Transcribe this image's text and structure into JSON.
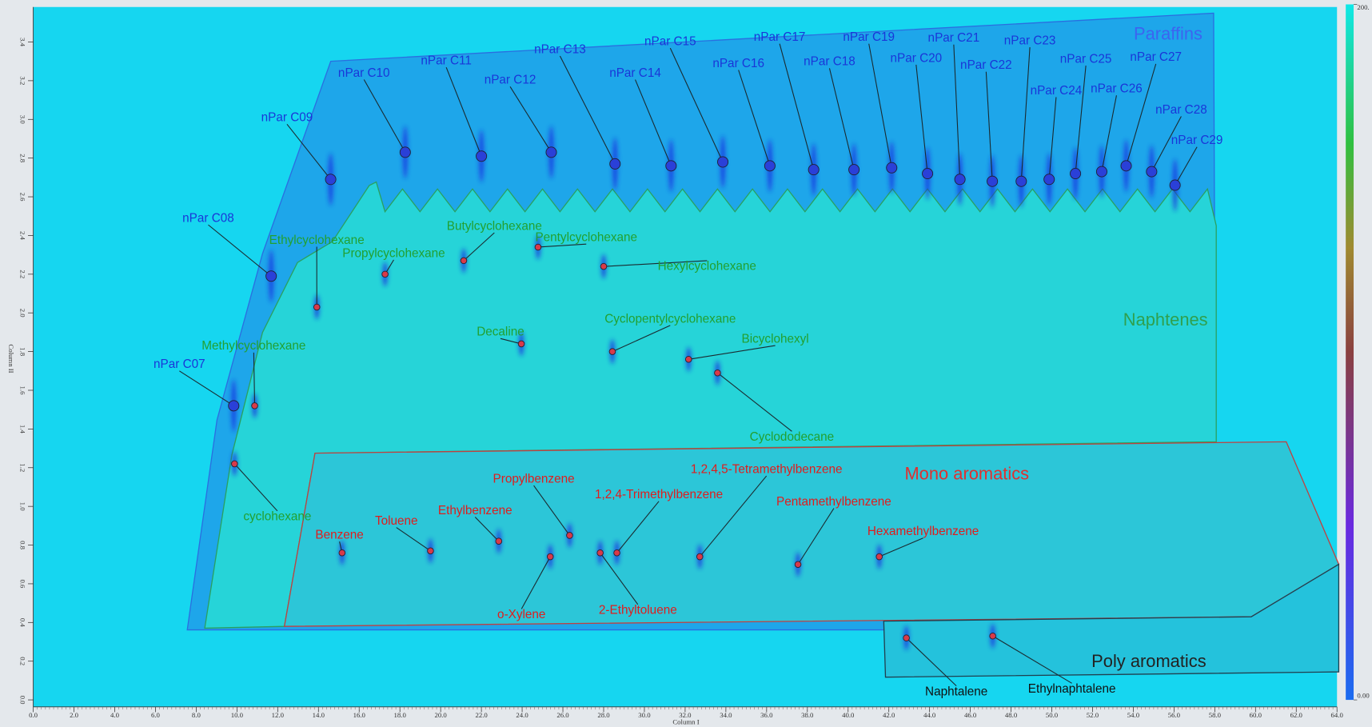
{
  "chart_data": {
    "type": "scatter",
    "xlabel": "Column I",
    "ylabel": "Column II",
    "xlim": [
      0,
      64
    ],
    "ylim": [
      0,
      3.4
    ],
    "xticks": [
      {
        "value": 0,
        "label": "0.0"
      },
      {
        "value": 2,
        "label": "2.0"
      },
      {
        "value": 4,
        "label": "4.0"
      },
      {
        "value": 6,
        "label": "6.0"
      },
      {
        "value": 8,
        "label": "8.0"
      },
      {
        "value": 10,
        "label": "10.0"
      },
      {
        "value": 12,
        "label": "12.0"
      },
      {
        "value": 14,
        "label": "14.0"
      },
      {
        "value": 16,
        "label": "16.0"
      },
      {
        "value": 18,
        "label": "18.0"
      },
      {
        "value": 20,
        "label": "20.0"
      },
      {
        "value": 22,
        "label": "22.0"
      },
      {
        "value": 24,
        "label": "24.0"
      },
      {
        "value": 26,
        "label": "26.0"
      },
      {
        "value": 28,
        "label": "28.0"
      },
      {
        "value": 30,
        "label": "30.0"
      },
      {
        "value": 32,
        "label": "32.0"
      },
      {
        "value": 34,
        "label": "34.0"
      },
      {
        "value": 36,
        "label": "36.0"
      },
      {
        "value": 38,
        "label": "38.0"
      },
      {
        "value": 40,
        "label": "40.0"
      },
      {
        "value": 42,
        "label": "42.0"
      },
      {
        "value": 44,
        "label": "44.0"
      },
      {
        "value": 46,
        "label": "46.0"
      },
      {
        "value": 48,
        "label": "48.0"
      },
      {
        "value": 50,
        "label": "50.0"
      },
      {
        "value": 52,
        "label": "52.0"
      },
      {
        "value": 54,
        "label": "54.0"
      },
      {
        "value": 56,
        "label": "56.0"
      },
      {
        "value": 58,
        "label": "58.0"
      },
      {
        "value": 60,
        "label": "60.0"
      },
      {
        "value": 62,
        "label": "62.0"
      },
      {
        "value": 64,
        "label": "64.0"
      }
    ],
    "yticks": [
      {
        "value": 0,
        "label": "0.0"
      },
      {
        "value": 0.2,
        "label": "0.2"
      },
      {
        "value": 0.4,
        "label": "0.4"
      },
      {
        "value": 0.6,
        "label": "0.6"
      },
      {
        "value": 0.8,
        "label": "0.8"
      },
      {
        "value": 1,
        "label": "1.0"
      },
      {
        "value": 1.2,
        "label": "1.2"
      },
      {
        "value": 1.4,
        "label": "1.4"
      },
      {
        "value": 1.6,
        "label": "1.6"
      },
      {
        "value": 1.8,
        "label": "1.8"
      },
      {
        "value": 2,
        "label": "2.0"
      },
      {
        "value": 2.2,
        "label": "2.2"
      },
      {
        "value": 2.4,
        "label": "2.4"
      },
      {
        "value": 2.6,
        "label": "2.6"
      },
      {
        "value": 2.8,
        "label": "2.8"
      },
      {
        "value": 3,
        "label": "3.0"
      },
      {
        "value": 3.2,
        "label": "3.2"
      },
      {
        "value": 3.4,
        "label": "3.4"
      }
    ],
    "colorbar": {
      "lim": [
        0,
        200
      ],
      "ticks": [
        {
          "value": 0,
          "label": "0.00"
        },
        {
          "value": 200,
          "label": "200."
        }
      ]
    },
    "groups": [
      {
        "name": "Paraffins",
        "color": "#3c64f0",
        "label_color": "#1a36d8",
        "compounds": [
          {
            "name": "nPar C07",
            "x": 9.84,
            "y": 1.52
          },
          {
            "name": "nPar C08",
            "x": 11.68,
            "y": 2.19
          },
          {
            "name": "nPar C09",
            "x": 14.6,
            "y": 2.69
          },
          {
            "name": "nPar C10",
            "x": 18.26,
            "y": 2.83
          },
          {
            "name": "nPar C11",
            "x": 22.0,
            "y": 2.81
          },
          {
            "name": "nPar C12",
            "x": 25.43,
            "y": 2.83
          },
          {
            "name": "nPar C13",
            "x": 28.56,
            "y": 2.77
          },
          {
            "name": "nPar C14",
            "x": 31.31,
            "y": 2.76
          },
          {
            "name": "nPar C15",
            "x": 33.85,
            "y": 2.78
          },
          {
            "name": "nPar C16",
            "x": 36.16,
            "y": 2.76
          },
          {
            "name": "nPar C17",
            "x": 38.31,
            "y": 2.74
          },
          {
            "name": "nPar C18",
            "x": 40.29,
            "y": 2.74
          },
          {
            "name": "nPar C19",
            "x": 42.14,
            "y": 2.75
          },
          {
            "name": "nPar C20",
            "x": 43.9,
            "y": 2.72
          },
          {
            "name": "nPar C21",
            "x": 45.49,
            "y": 2.69
          },
          {
            "name": "nPar C22",
            "x": 47.08,
            "y": 2.68
          },
          {
            "name": "nPar C23",
            "x": 48.5,
            "y": 2.68
          },
          {
            "name": "nPar C24",
            "x": 49.87,
            "y": 2.69
          },
          {
            "name": "nPar C25",
            "x": 51.16,
            "y": 2.72
          },
          {
            "name": "nPar C26",
            "x": 52.45,
            "y": 2.73
          },
          {
            "name": "nPar C27",
            "x": 53.65,
            "y": 2.76
          },
          {
            "name": "nPar C28",
            "x": 54.9,
            "y": 2.73
          },
          {
            "name": "nPar C29",
            "x": 56.05,
            "y": 2.66
          }
        ]
      },
      {
        "name": "Naphtenes",
        "color": "#2fa04e",
        "label_color": "#22a030",
        "compounds": [
          {
            "name": "Ethylcyclohexane",
            "x": 13.92,
            "y": 2.03
          },
          {
            "name": "Propylcyclohexane",
            "x": 17.27,
            "y": 2.2
          },
          {
            "name": "Butylcyclohexane",
            "x": 21.13,
            "y": 2.27
          },
          {
            "name": "Pentylcyclohexane",
            "x": 24.78,
            "y": 2.34
          },
          {
            "name": "Hexylcyclohexane",
            "x": 28.0,
            "y": 2.24
          },
          {
            "name": "Methylcyclohexane",
            "x": 10.87,
            "y": 1.52
          },
          {
            "name": "Decaline",
            "x": 23.96,
            "y": 1.84
          },
          {
            "name": "Cyclopentylcyclohexane",
            "x": 28.43,
            "y": 1.8
          },
          {
            "name": "Bicyclohexyl",
            "x": 32.17,
            "y": 1.76
          },
          {
            "name": "Cyclododecane",
            "x": 33.59,
            "y": 1.69
          },
          {
            "name": "cyclohexane",
            "x": 9.88,
            "y": 1.22
          }
        ]
      },
      {
        "name": "Mono aromatics",
        "color": "#e03030",
        "label_color": "#e01c1c",
        "compounds": [
          {
            "name": "Benzene",
            "x": 15.16,
            "y": 0.76
          },
          {
            "name": "Toluene",
            "x": 19.5,
            "y": 0.77
          },
          {
            "name": "Ethylbenzene",
            "x": 22.85,
            "y": 0.82
          },
          {
            "name": "Propylbenzene",
            "x": 26.33,
            "y": 0.85
          },
          {
            "name": "o-Xylene",
            "x": 25.38,
            "y": 0.74
          },
          {
            "name": "1,2,4-Trimethylbenzene",
            "x": 28.65,
            "y": 0.76
          },
          {
            "name": "2-Ethyltoluene",
            "x": 27.83,
            "y": 0.76
          },
          {
            "name": "1,2,4,5-Tetramethylbenzene",
            "x": 32.72,
            "y": 0.74
          },
          {
            "name": "Pentamethylbenzene",
            "x": 37.54,
            "y": 0.7
          },
          {
            "name": "Hexamethylbenzene",
            "x": 41.53,
            "y": 0.74
          }
        ]
      },
      {
        "name": "Poly aromatics",
        "color": "#222222",
        "label_color": "#111111",
        "compounds": [
          {
            "name": "Naphtalene",
            "x": 42.86,
            "y": 0.32
          },
          {
            "name": "Ethylnaphtalene",
            "x": 47.1,
            "y": 0.33
          }
        ]
      }
    ]
  }
}
